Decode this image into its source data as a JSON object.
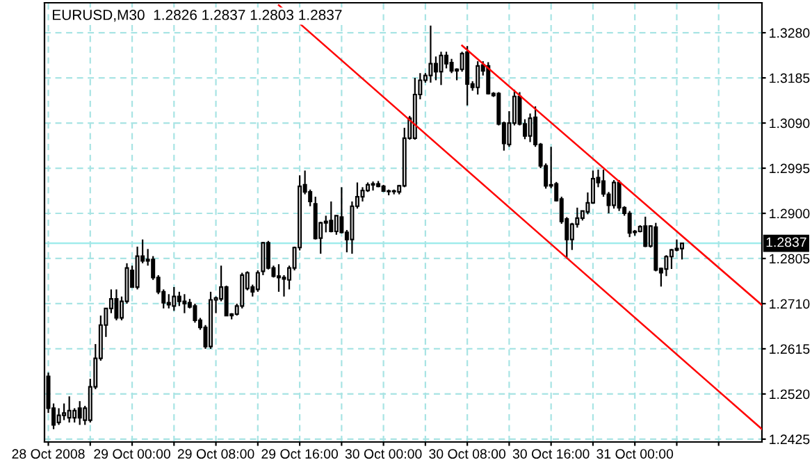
{
  "chart_data": {
    "type": "candlestick",
    "title": "EURUSD,M30  1.2826 1.2837 1.2803 1.2837",
    "x": [
      "2008-10-28T16:00",
      "2008-10-28T16:30",
      "2008-10-28T17:00",
      "2008-10-28T17:30",
      "2008-10-28T18:00",
      "2008-10-28T18:30",
      "2008-10-28T19:00",
      "2008-10-28T19:30",
      "2008-10-28T20:00",
      "2008-10-28T20:30",
      "2008-10-28T21:00",
      "2008-10-28T21:30",
      "2008-10-28T22:00",
      "2008-10-28T22:30",
      "2008-10-28T23:00",
      "2008-10-28T23:30",
      "2008-10-29T00:00",
      "2008-10-29T00:30",
      "2008-10-29T01:00",
      "2008-10-29T01:30",
      "2008-10-29T02:00",
      "2008-10-29T02:30",
      "2008-10-29T03:00",
      "2008-10-29T03:30",
      "2008-10-29T04:00",
      "2008-10-29T04:30",
      "2008-10-29T05:00",
      "2008-10-29T05:30",
      "2008-10-29T06:00",
      "2008-10-29T06:30",
      "2008-10-29T07:00",
      "2008-10-29T07:30",
      "2008-10-29T08:00",
      "2008-10-29T08:30",
      "2008-10-29T09:00",
      "2008-10-29T09:30",
      "2008-10-29T10:00",
      "2008-10-29T10:30",
      "2008-10-29T11:00",
      "2008-10-29T11:30",
      "2008-10-29T12:00",
      "2008-10-29T12:30",
      "2008-10-29T13:00",
      "2008-10-29T13:30",
      "2008-10-29T14:00",
      "2008-10-29T14:30",
      "2008-10-29T15:00",
      "2008-10-29T15:30",
      "2008-10-29T16:00",
      "2008-10-29T16:30",
      "2008-10-29T17:00",
      "2008-10-29T17:30",
      "2008-10-29T18:00",
      "2008-10-29T18:30",
      "2008-10-29T19:00",
      "2008-10-29T19:30",
      "2008-10-29T20:00",
      "2008-10-29T20:30",
      "2008-10-29T21:00",
      "2008-10-29T21:30",
      "2008-10-29T22:00",
      "2008-10-29T22:30",
      "2008-10-29T23:00",
      "2008-10-29T23:30",
      "2008-10-30T00:00",
      "2008-10-30T00:30",
      "2008-10-30T01:00",
      "2008-10-30T01:30",
      "2008-10-30T02:00",
      "2008-10-30T02:30",
      "2008-10-30T03:00",
      "2008-10-30T03:30",
      "2008-10-30T04:00",
      "2008-10-30T04:30",
      "2008-10-30T05:00",
      "2008-10-30T05:30",
      "2008-10-30T06:00",
      "2008-10-30T06:30",
      "2008-10-30T07:00",
      "2008-10-30T07:30",
      "2008-10-30T08:00",
      "2008-10-30T08:30",
      "2008-10-30T09:00",
      "2008-10-30T09:30",
      "2008-10-30T10:00",
      "2008-10-30T10:30",
      "2008-10-30T11:00",
      "2008-10-30T11:30",
      "2008-10-30T12:00",
      "2008-10-30T12:30",
      "2008-10-30T13:00",
      "2008-10-30T13:30",
      "2008-10-30T14:00",
      "2008-10-30T14:30",
      "2008-10-30T15:00",
      "2008-10-30T15:30",
      "2008-10-30T16:00",
      "2008-10-30T16:30",
      "2008-10-30T17:00",
      "2008-10-30T17:30",
      "2008-10-30T18:00",
      "2008-10-30T18:30",
      "2008-10-30T19:00",
      "2008-10-30T19:30",
      "2008-10-30T20:00",
      "2008-10-30T20:30",
      "2008-10-30T21:00",
      "2008-10-30T21:30",
      "2008-10-30T22:00",
      "2008-10-30T22:30",
      "2008-10-30T23:00",
      "2008-10-30T23:30",
      "2008-10-31T00:00",
      "2008-10-31T00:30",
      "2008-10-31T01:00",
      "2008-10-31T01:30",
      "2008-10-31T02:00",
      "2008-10-31T02:30",
      "2008-10-31T03:00",
      "2008-10-31T03:30",
      "2008-10-31T04:00",
      "2008-10-31T04:30"
    ],
    "ohlc": [
      [
        1.2557,
        1.2565,
        1.248,
        1.249
      ],
      [
        1.249,
        1.25,
        1.2446,
        1.2455
      ],
      [
        1.246,
        1.249,
        1.2455,
        1.2475
      ],
      [
        1.2475,
        1.25,
        1.2465,
        1.248
      ],
      [
        1.247,
        1.2515,
        1.246,
        1.2485
      ],
      [
        1.247,
        1.249,
        1.246,
        1.2485
      ],
      [
        1.249,
        1.2505,
        1.2455,
        1.247
      ],
      [
        1.2465,
        1.2495,
        1.2455,
        1.249
      ],
      [
        1.2465,
        1.2552,
        1.246,
        1.2535
      ],
      [
        1.2535,
        1.2625,
        1.253,
        1.2595
      ],
      [
        1.2595,
        1.2685,
        1.259,
        1.2665
      ],
      [
        1.2665,
        1.27,
        1.264,
        1.27
      ],
      [
        1.27,
        1.274,
        1.269,
        1.272
      ],
      [
        1.272,
        1.274,
        1.2675,
        1.268
      ],
      [
        1.268,
        1.2725,
        1.2675,
        1.2715
      ],
      [
        1.2715,
        1.2795,
        1.271,
        1.2785
      ],
      [
        1.278,
        1.279,
        1.2745,
        1.2745
      ],
      [
        1.2745,
        1.283,
        1.274,
        1.281
      ],
      [
        1.281,
        1.2845,
        1.2795,
        1.28
      ],
      [
        1.28,
        1.2825,
        1.279,
        1.2803
      ],
      [
        1.2803,
        1.281,
        1.276,
        1.2765
      ],
      [
        1.2765,
        1.277,
        1.273,
        1.2735
      ],
      [
        1.2735,
        1.274,
        1.27,
        1.2712
      ],
      [
        1.2712,
        1.273,
        1.27,
        1.2708
      ],
      [
        1.2705,
        1.2745,
        1.2695,
        1.2725
      ],
      [
        1.2725,
        1.2735,
        1.2705,
        1.2715
      ],
      [
        1.2715,
        1.273,
        1.269,
        1.271
      ],
      [
        1.2712,
        1.272,
        1.27,
        1.2703
      ],
      [
        1.2705,
        1.271,
        1.267,
        1.2675
      ],
      [
        1.2675,
        1.268,
        1.2655,
        1.266
      ],
      [
        1.266,
        1.2665,
        1.2615,
        1.262
      ],
      [
        1.262,
        1.2735,
        1.2615,
        1.2718
      ],
      [
        1.2718,
        1.2725,
        1.269,
        1.2722
      ],
      [
        1.272,
        1.279,
        1.2715,
        1.2745
      ],
      [
        1.2745,
        1.2748,
        1.2685,
        1.2685
      ],
      [
        1.2685,
        1.269,
        1.2677,
        1.2688
      ],
      [
        1.2688,
        1.271,
        1.2685,
        1.2705
      ],
      [
        1.2705,
        1.2775,
        1.27,
        1.277
      ],
      [
        1.2742,
        1.2778,
        1.2738,
        1.2775
      ],
      [
        1.2745,
        1.275,
        1.2725,
        1.2735
      ],
      [
        1.274,
        1.278,
        1.2735,
        1.2775
      ],
      [
        1.2778,
        1.284,
        1.277,
        1.2838
      ],
      [
        1.2838,
        1.2842,
        1.2782,
        1.2785
      ],
      [
        1.2785,
        1.279,
        1.2765,
        1.2768
      ],
      [
        1.2768,
        1.2793,
        1.2735,
        1.2765
      ],
      [
        1.2765,
        1.277,
        1.2725,
        1.2762
      ],
      [
        1.276,
        1.279,
        1.274,
        1.2785
      ],
      [
        1.2785,
        1.283,
        1.278,
        1.2828
      ],
      [
        1.2828,
        1.298,
        1.2822,
        1.2957
      ],
      [
        1.296,
        1.299,
        1.294,
        1.2945
      ],
      [
        1.2945,
        1.295,
        1.2915,
        1.2925
      ],
      [
        1.292,
        1.2935,
        1.2845,
        1.2847
      ],
      [
        1.2848,
        1.2882,
        1.2815,
        1.288
      ],
      [
        1.288,
        1.2895,
        1.286,
        1.2883
      ],
      [
        1.2885,
        1.2925,
        1.286,
        1.2862
      ],
      [
        1.2862,
        1.2895,
        1.2855,
        1.2895
      ],
      [
        1.2892,
        1.2955,
        1.2858,
        1.286
      ],
      [
        1.286,
        1.2865,
        1.2818,
        1.2845
      ],
      [
        1.2845,
        1.2925,
        1.2815,
        1.2915
      ],
      [
        1.2915,
        1.2965,
        1.291,
        1.2935
      ],
      [
        1.2935,
        1.2955,
        1.2925,
        1.2948
      ],
      [
        1.2948,
        1.2965,
        1.2945,
        1.296
      ],
      [
        1.296,
        1.2967,
        1.2948,
        1.2962
      ],
      [
        1.2962,
        1.2968,
        1.2955,
        1.2957
      ],
      [
        1.2957,
        1.296,
        1.2945,
        1.2947
      ],
      [
        1.2947,
        1.295,
        1.2938,
        1.2946
      ],
      [
        1.2946,
        1.295,
        1.294,
        1.2947
      ],
      [
        1.2945,
        1.296,
        1.294,
        1.2958
      ],
      [
        1.2958,
        1.308,
        1.2955,
        1.3058
      ],
      [
        1.3058,
        1.3105,
        1.3055,
        1.31
      ],
      [
        1.3058,
        1.3185,
        1.3055,
        1.315
      ],
      [
        1.315,
        1.3195,
        1.314,
        1.318
      ],
      [
        1.318,
        1.3195,
        1.3175,
        1.319
      ],
      [
        1.319,
        1.3295,
        1.3175,
        1.3215
      ],
      [
        1.3215,
        1.323,
        1.318,
        1.3198
      ],
      [
        1.3198,
        1.324,
        1.317,
        1.3232
      ],
      [
        1.3232,
        1.324,
        1.3205,
        1.3215
      ],
      [
        1.3217,
        1.3225,
        1.3195,
        1.32
      ],
      [
        1.32,
        1.3205,
        1.318,
        1.3203
      ],
      [
        1.3203,
        1.324,
        1.3198,
        1.3236
      ],
      [
        1.3239,
        1.3252,
        1.3127,
        1.3172
      ],
      [
        1.3172,
        1.3178,
        1.3158,
        1.3165
      ],
      [
        1.3165,
        1.322,
        1.315,
        1.321
      ],
      [
        1.3212,
        1.322,
        1.319,
        1.32
      ],
      [
        1.321,
        1.3218,
        1.315,
        1.3152
      ],
      [
        1.3152,
        1.3155,
        1.3145,
        1.3148
      ],
      [
        1.3152,
        1.3155,
        1.3085,
        1.3088
      ],
      [
        1.309,
        1.3093,
        1.3032,
        1.3047
      ],
      [
        1.3045,
        1.3115,
        1.304,
        1.309
      ],
      [
        1.309,
        1.316,
        1.3085,
        1.3146
      ],
      [
        1.3146,
        1.3155,
        1.3085,
        1.3088
      ],
      [
        1.3088,
        1.3098,
        1.3056,
        1.3063
      ],
      [
        1.3063,
        1.311,
        1.305,
        1.31
      ],
      [
        1.3102,
        1.3125,
        1.304,
        1.3045
      ],
      [
        1.3045,
        1.3048,
        1.2995,
        1.3
      ],
      [
        1.3,
        1.3005,
        1.2952,
        1.2958
      ],
      [
        1.2958,
        1.304,
        1.2953,
        1.296
      ],
      [
        1.2962,
        1.2966,
        1.2925,
        1.2927
      ],
      [
        1.293,
        1.2935,
        1.2878,
        1.2883
      ],
      [
        1.2888,
        1.2892,
        1.2806,
        1.2845
      ],
      [
        1.2845,
        1.288,
        1.2823,
        1.2877
      ],
      [
        1.2877,
        1.2912,
        1.287,
        1.289
      ],
      [
        1.289,
        1.2905,
        1.2885,
        1.2905
      ],
      [
        1.2903,
        1.2944,
        1.2898,
        1.2922
      ],
      [
        1.2922,
        1.299,
        1.292,
        1.2973
      ],
      [
        1.2975,
        1.2992,
        1.2955,
        1.2965
      ],
      [
        1.2968,
        1.2992,
        1.2935,
        1.2941
      ],
      [
        1.294,
        1.2945,
        1.29,
        1.2917
      ],
      [
        1.2917,
        1.297,
        1.291,
        1.2965
      ],
      [
        1.2965,
        1.297,
        1.2905,
        1.2912
      ],
      [
        1.2912,
        1.2915,
        1.2895,
        1.29
      ],
      [
        1.29,
        1.2905,
        1.285,
        1.2859
      ],
      [
        1.286,
        1.2865,
        1.2853,
        1.2862
      ],
      [
        1.2862,
        1.2875,
        1.286,
        1.2872
      ],
      [
        1.2873,
        1.2893,
        1.2829,
        1.2831
      ],
      [
        1.2831,
        1.2875,
        1.2828,
        1.2873
      ],
      [
        1.2871,
        1.288,
        1.2778,
        1.2781
      ],
      [
        1.2784,
        1.2786,
        1.2746,
        1.2775
      ],
      [
        1.2783,
        1.2812,
        1.2768,
        1.2809
      ],
      [
        1.2809,
        1.2825,
        1.2783,
        1.2823
      ],
      [
        1.2823,
        1.2845,
        1.282,
        1.2826
      ],
      [
        1.2826,
        1.2837,
        1.2803,
        1.2837
      ]
    ],
    "series": [
      {
        "type": "line",
        "x": [
          "2008-10-29T14:00",
          "2008-10-31T12:08"
        ],
        "values": [
          1.3338,
          1.2446
        ],
        "color": "#ff0000"
      },
      {
        "type": "line",
        "x": [
          "2008-10-30T07:30",
          "2008-10-31T12:08"
        ],
        "values": [
          1.3253,
          1.2707
        ],
        "color": "#ff0000"
      }
    ],
    "xlim": [
      "2008-10-28T15:38",
      "2008-10-31T12:08"
    ],
    "xticks": [
      {
        "value": "2008-10-28T16:00",
        "label": "28 Oct 2008"
      },
      {
        "value": "2008-10-28T20:00",
        "label": null
      },
      {
        "value": "2008-10-29T00:00",
        "label": "29 Oct 00:00"
      },
      {
        "value": "2008-10-29T04:00",
        "label": null
      },
      {
        "value": "2008-10-29T08:00",
        "label": "29 Oct 08:00"
      },
      {
        "value": "2008-10-29T12:00",
        "label": null
      },
      {
        "value": "2008-10-29T16:00",
        "label": "29 Oct 16:00"
      },
      {
        "value": "2008-10-29T20:00",
        "label": null
      },
      {
        "value": "2008-10-30T00:00",
        "label": "30 Oct 00:00"
      },
      {
        "value": "2008-10-30T04:00",
        "label": null
      },
      {
        "value": "2008-10-30T08:00",
        "label": "30 Oct 08:00"
      },
      {
        "value": "2008-10-30T12:00",
        "label": null
      },
      {
        "value": "2008-10-30T16:00",
        "label": "30 Oct 16:00"
      },
      {
        "value": "2008-10-30T20:00",
        "label": null
      },
      {
        "value": "2008-10-31T00:00",
        "label": "31 Oct 00:00"
      },
      {
        "value": "2008-10-31T04:00",
        "label": null
      },
      {
        "value": "2008-10-31T08:00",
        "label": null
      }
    ],
    "ylim": [
      1.2419,
      1.3343
    ],
    "yticks": [
      {
        "value": 1.2425,
        "label": "1.2425"
      },
      {
        "value": 1.252,
        "label": "1.2520"
      },
      {
        "value": 1.2615,
        "label": "1.2615"
      },
      {
        "value": 1.271,
        "label": "1.2710"
      },
      {
        "value": 1.2805,
        "label": "1.2805"
      },
      {
        "value": 1.29,
        "label": "1.2900"
      },
      {
        "value": 1.2995,
        "label": "1.2995"
      },
      {
        "value": 1.309,
        "label": "1.3090"
      },
      {
        "value": 1.3185,
        "label": "1.3185"
      },
      {
        "value": 1.328,
        "label": "1.3280"
      }
    ],
    "ref_lines": [
      {
        "axis": "y",
        "value": 1.2837,
        "label": "1.2837",
        "color": "#a0ecec"
      }
    ],
    "grid": true,
    "line_style": "solid",
    "marker": "none"
  }
}
